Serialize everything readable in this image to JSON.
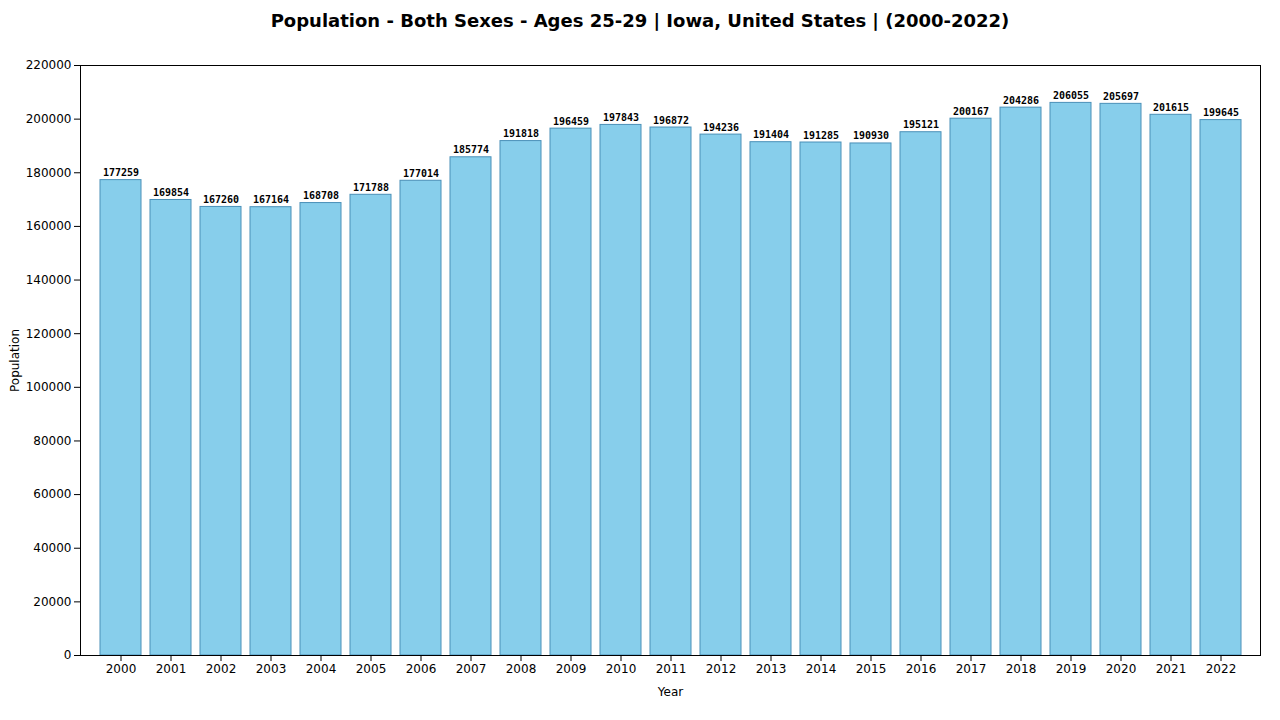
{
  "chart_data": {
    "type": "bar",
    "title": "Population - Both Sexes - Ages 25-29 | Iowa, United States |  (2000-2022)",
    "xlabel": "Year",
    "ylabel": "Population",
    "categories": [
      "2000",
      "2001",
      "2002",
      "2003",
      "2004",
      "2005",
      "2006",
      "2007",
      "2008",
      "2009",
      "2010",
      "2011",
      "2012",
      "2013",
      "2014",
      "2015",
      "2016",
      "2017",
      "2018",
      "2019",
      "2020",
      "2021",
      "2022"
    ],
    "values": [
      177259,
      169854,
      167260,
      167164,
      168708,
      171788,
      177014,
      185774,
      191818,
      196459,
      197843,
      196872,
      194236,
      191404,
      191285,
      190930,
      195121,
      200167,
      204286,
      206055,
      205697,
      201615,
      199645
    ],
    "color": "#87CEEB",
    "ylim": [
      0,
      220000
    ],
    "yticks": [
      0,
      20000,
      40000,
      60000,
      80000,
      100000,
      120000,
      140000,
      160000,
      180000,
      200000,
      220000
    ],
    "grid": false,
    "data_labels": true
  }
}
